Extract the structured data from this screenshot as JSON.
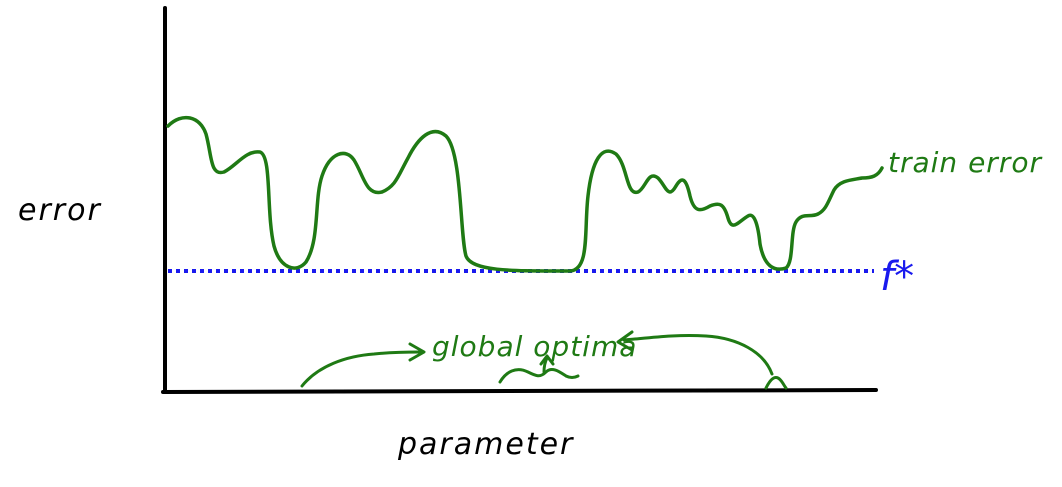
{
  "labels": {
    "y_axis": "error",
    "x_axis": "parameter",
    "curve": "train error",
    "threshold": "f*",
    "annotation": "global optima"
  },
  "colors": {
    "axis": "#000000",
    "curve": "#1f7a14",
    "threshold": "#1a1aee"
  }
}
